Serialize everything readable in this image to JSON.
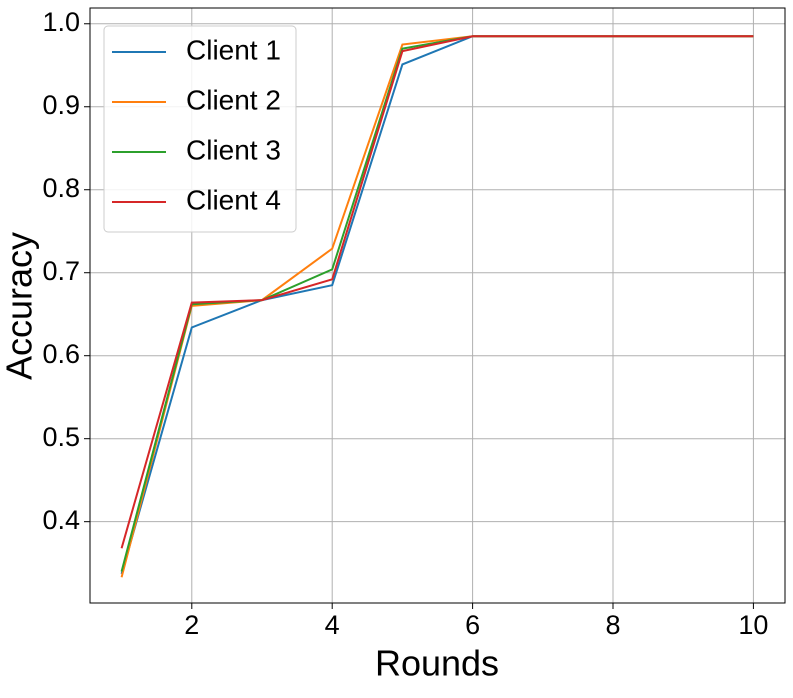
{
  "chart_data": {
    "type": "line",
    "x_label": "Rounds",
    "y_label": "Accuracy",
    "x": [
      1,
      2,
      3,
      4,
      5,
      6,
      7,
      8,
      9,
      10
    ],
    "series": [
      {
        "name": "Client 1",
        "color": "#1f77b4",
        "values": [
          0.337,
          0.634,
          0.667,
          0.685,
          0.951,
          0.985,
          0.985,
          0.985,
          0.985,
          0.985
        ]
      },
      {
        "name": "Client 2",
        "color": "#ff7f0e",
        "values": [
          0.333,
          0.66,
          0.667,
          0.729,
          0.975,
          0.985,
          0.985,
          0.985,
          0.985,
          0.985
        ]
      },
      {
        "name": "Client 3",
        "color": "#2ca02c",
        "values": [
          0.34,
          0.662,
          0.667,
          0.704,
          0.97,
          0.985,
          0.985,
          0.985,
          0.985,
          0.985
        ]
      },
      {
        "name": "Client 4",
        "color": "#d62728",
        "values": [
          0.368,
          0.664,
          0.667,
          0.692,
          0.967,
          0.985,
          0.985,
          0.985,
          0.985,
          0.985
        ]
      }
    ],
    "xlim": [
      0.55,
      10.45
    ],
    "ylim": [
      0.302,
      1.019
    ],
    "xticks": [
      2,
      4,
      6,
      8,
      10
    ],
    "yticks": [
      {
        "value": 0.4,
        "label": "0.4"
      },
      {
        "value": 0.5,
        "label": "0.5"
      },
      {
        "value": 0.6,
        "label": "0.6"
      },
      {
        "value": 0.7,
        "label": "0.7"
      },
      {
        "value": 0.8,
        "label": "0.8"
      },
      {
        "value": 0.9,
        "label": "0.9"
      },
      {
        "value": 1.0,
        "label": "1.0"
      }
    ],
    "grid": true,
    "legend": "upper left"
  }
}
